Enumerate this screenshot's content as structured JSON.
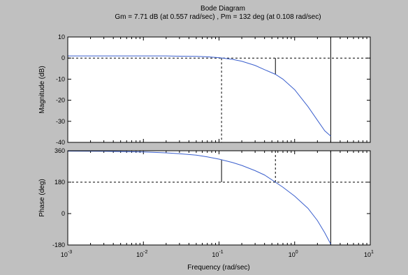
{
  "chart_data": {
    "type": "line",
    "title": "Bode Diagram",
    "subtitle": "Gm = 7.71 dB (at 0.557 rad/sec) ,  Pm = 132 deg (at 0.108 rad/sec)",
    "xlabel": "Frequency  (rad/sec)",
    "xscale": "log",
    "xlim": [
      0.001,
      10
    ],
    "x_ticks": [
      {
        "base": "10",
        "exp": "-3",
        "value": 0.001
      },
      {
        "base": "10",
        "exp": "-2",
        "value": 0.01
      },
      {
        "base": "10",
        "exp": "-1",
        "value": 0.1
      },
      {
        "base": "10",
        "exp": "0",
        "value": 1
      },
      {
        "base": "10",
        "exp": "1",
        "value": 10
      }
    ],
    "grid": false,
    "line_color": "#3a5fcd",
    "figure_background": "#c0c0c0",
    "axes_background": "#ffffff",
    "panels": [
      {
        "id": "magnitude",
        "ylabel": "Magnitude (dB)",
        "ylim": [
          -40,
          10
        ],
        "y_ticks": [
          10,
          0,
          -10,
          -20,
          -30,
          -40
        ],
        "reference_line": 0,
        "series": [
          {
            "x": [
              0.001,
              0.003,
              0.01,
              0.02,
              0.03,
              0.05,
              0.07,
              0.1,
              0.15,
              0.2,
              0.3,
              0.4,
              0.557,
              0.7,
              1.0,
              1.5,
              2.0,
              2.5,
              3.0
            ],
            "values": [
              1.0,
              1.0,
              1.0,
              1.0,
              0.9,
              0.8,
              0.6,
              0.2,
              -0.6,
              -1.5,
              -3.5,
              -5.5,
              -7.71,
              -10.0,
              -15.0,
              -23.0,
              -29.5,
              -34.5,
              -37.0
            ]
          }
        ]
      },
      {
        "id": "phase",
        "ylabel": "Phase (deg)",
        "ylim": [
          -180,
          360
        ],
        "y_ticks": [
          360,
          180,
          0,
          -180
        ],
        "reference_line": 180,
        "series": [
          {
            "x": [
              0.001,
              0.003,
              0.01,
              0.02,
              0.03,
              0.05,
              0.07,
              0.1,
              0.15,
              0.2,
              0.3,
              0.4,
              0.557,
              0.7,
              1.0,
              1.5,
              2.0,
              2.5,
              3.0
            ],
            "values": [
              358,
              357,
              353,
              348,
              343,
              335,
              325,
              312,
              293,
              276,
              246,
              221,
              180,
              151,
              100,
              30,
              -40,
              -110,
              -175
            ]
          }
        ]
      }
    ],
    "margins": {
      "gain_margin_frequency": 0.557,
      "phase_margin_frequency": 0.108,
      "frequency_marker": 3.0
    }
  }
}
